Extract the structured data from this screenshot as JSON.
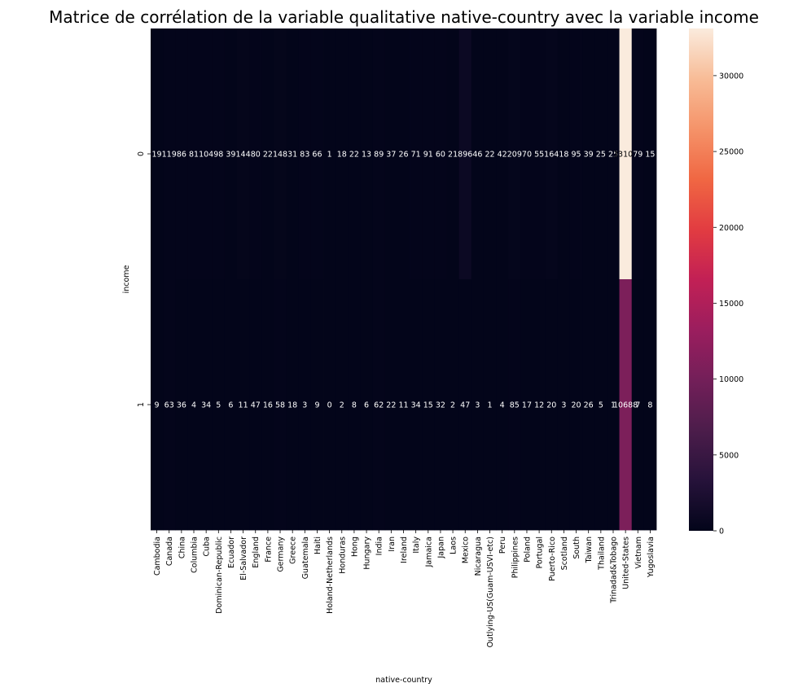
{
  "chart_data": {
    "type": "heatmap",
    "title": "Matrice de corrélation de la variable qualitative native-country avec la variable income",
    "xlabel": "native-country",
    "ylabel": "income",
    "x_categories": [
      "Cambodia",
      "Canada",
      "China",
      "Columbia",
      "Cuba",
      "Dominican-Republic",
      "Ecuador",
      "El-Salvador",
      "England",
      "France",
      "Germany",
      "Greece",
      "Guatemala",
      "Haiti",
      "Holand-Netherlands",
      "Honduras",
      "Hong",
      "Hungary",
      "India",
      "Iran",
      "Ireland",
      "Italy",
      "Jamaica",
      "Japan",
      "Laos",
      "Mexico",
      "Nicaragua",
      "Outlying-US(Guam-USVI-etc)",
      "Peru",
      "Philippines",
      "Poland",
      "Portugal",
      "Puerto-Rico",
      "Scotland",
      "South",
      "Taiwan",
      "Thailand",
      "Trinadad&Tobago",
      "United-States",
      "Vietnam",
      "Yugoslavia"
    ],
    "y_categories": [
      "0",
      "1"
    ],
    "values": [
      [
        19,
        119,
        86,
        81,
        104,
        98,
        39,
        144,
        80,
        22,
        148,
        31,
        83,
        66,
        1,
        18,
        22,
        13,
        89,
        37,
        26,
        71,
        91,
        60,
        21,
        896,
        46,
        22,
        42,
        209,
        70,
        55,
        164,
        18,
        95,
        39,
        25,
        25,
        33107,
        79,
        15
      ],
      [
        9,
        63,
        36,
        4,
        34,
        5,
        6,
        11,
        47,
        16,
        58,
        18,
        3,
        9,
        0,
        2,
        8,
        6,
        62,
        22,
        11,
        34,
        15,
        32,
        2,
        47,
        3,
        1,
        4,
        85,
        17,
        12,
        20,
        3,
        20,
        26,
        5,
        1,
        10688,
        7,
        8
      ]
    ],
    "colorbar": {
      "range": [
        0,
        33107
      ],
      "ticks": [
        0,
        5000,
        10000,
        15000,
        20000,
        25000,
        30000
      ],
      "colormap": "rocket"
    }
  }
}
